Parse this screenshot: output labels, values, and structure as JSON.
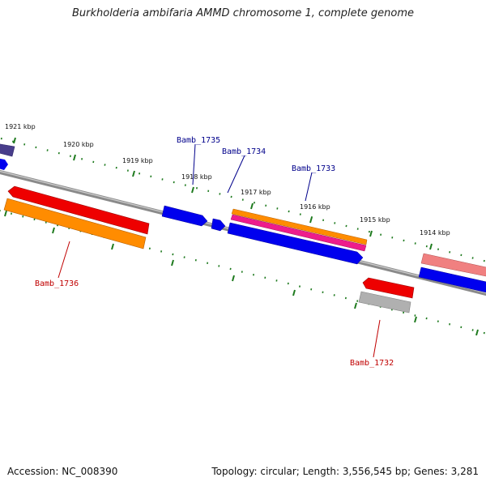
{
  "title": "Burkholderia ambifaria AMMD chromosome 1, complete genome",
  "footer": {
    "accession": "Accession: NC_008390",
    "summary": "Topology: circular; Length: 3,556,545 bp; Genes: 3,281"
  },
  "colors": {
    "backbone": "#7a7a7a",
    "tick": "#1e7a1e",
    "label_forward": "#00008b",
    "label_reverse": "#c00000",
    "blue": "#0000ee",
    "red": "#ee0000",
    "orange": "#ff8c00",
    "magenta": "#ee1c8c",
    "pink": "#f08080",
    "gray": "#b0b0b0",
    "purple": "#483d8b"
  },
  "ticks": [
    "1921 kbp",
    "1920 kbp",
    "1919 kbp",
    "1918 kbp",
    "1917 kbp",
    "1916 kbp",
    "1915 kbp",
    "1914 kbp"
  ],
  "gene_labels": {
    "forward": [
      "Bamb_1735",
      "Bamb_1734",
      "Bamb_1733"
    ],
    "reverse": [
      "Bamb_1736",
      "Bamb_1732"
    ]
  }
}
